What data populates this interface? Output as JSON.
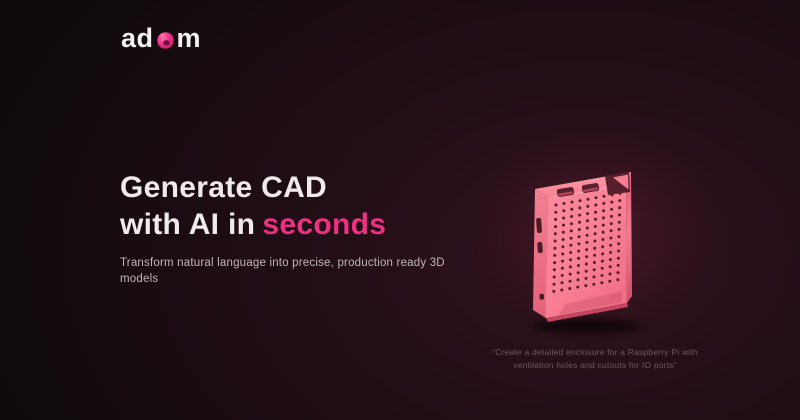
{
  "brand": {
    "name_prefix": "ad",
    "name_suffix": "m",
    "icon": "adam-blob-icon",
    "accent_color": "#ee2f84"
  },
  "hero": {
    "title_line1": "Generate CAD",
    "title_line2_prefix": "with AI in",
    "title_line2_accent": "seconds",
    "accent_color": "#ee2f84",
    "subtitle": "Transform natural language into precise, production ready 3D models"
  },
  "showcase": {
    "model": "raspberry-pi-enclosure-3d-render",
    "model_color": "#f97f92",
    "caption": "“Create a detailed enclosure for a Raspberry Pi with ventilation holes and cutouts for IO ports”"
  }
}
